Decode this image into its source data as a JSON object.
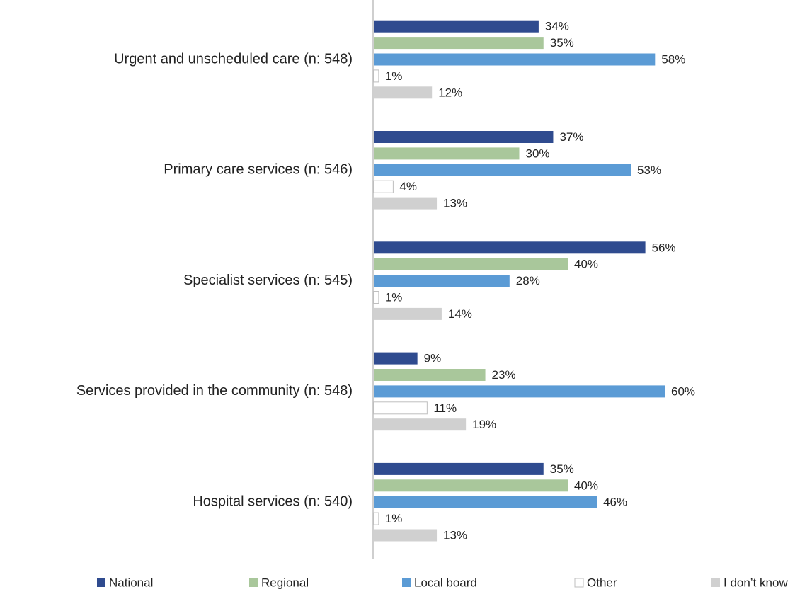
{
  "chart_data": {
    "type": "bar",
    "orientation": "horizontal",
    "categories": [
      "Urgent and unscheduled care (n: 548)",
      "Primary care services (n: 546)",
      "Specialist services (n: 545)",
      "Services provided in the community (n: 548)",
      "Hospital services (n: 540)"
    ],
    "series": [
      {
        "name": "National",
        "color": "#2f4b8f",
        "values": [
          34,
          37,
          56,
          9,
          35
        ],
        "value_labels": [
          "34%",
          "37%",
          "56%",
          "9%",
          "35%"
        ]
      },
      {
        "name": "Regional",
        "color": "#a9c79b",
        "values": [
          35,
          30,
          40,
          23,
          40
        ],
        "value_labels": [
          "35%",
          "30%",
          "40%",
          "23%",
          "40%"
        ]
      },
      {
        "name": "Local board",
        "color": "#5b9bd5",
        "values": [
          58,
          53,
          28,
          60,
          46
        ],
        "value_labels": [
          "58%",
          "53%",
          "28%",
          "60%",
          "46%"
        ]
      },
      {
        "name": "Other",
        "color": "#ffffff",
        "values": [
          1,
          4,
          1,
          11,
          1
        ],
        "value_labels": [
          "1%",
          "4%",
          "1%",
          "11%",
          "1%"
        ]
      },
      {
        "name": "I don’t know",
        "color": "#d0d0d0",
        "values": [
          12,
          13,
          14,
          19,
          13
        ],
        "value_labels": [
          "12%",
          "13%",
          "14%",
          "19%",
          "13%"
        ]
      }
    ],
    "legend": "bottom"
  }
}
